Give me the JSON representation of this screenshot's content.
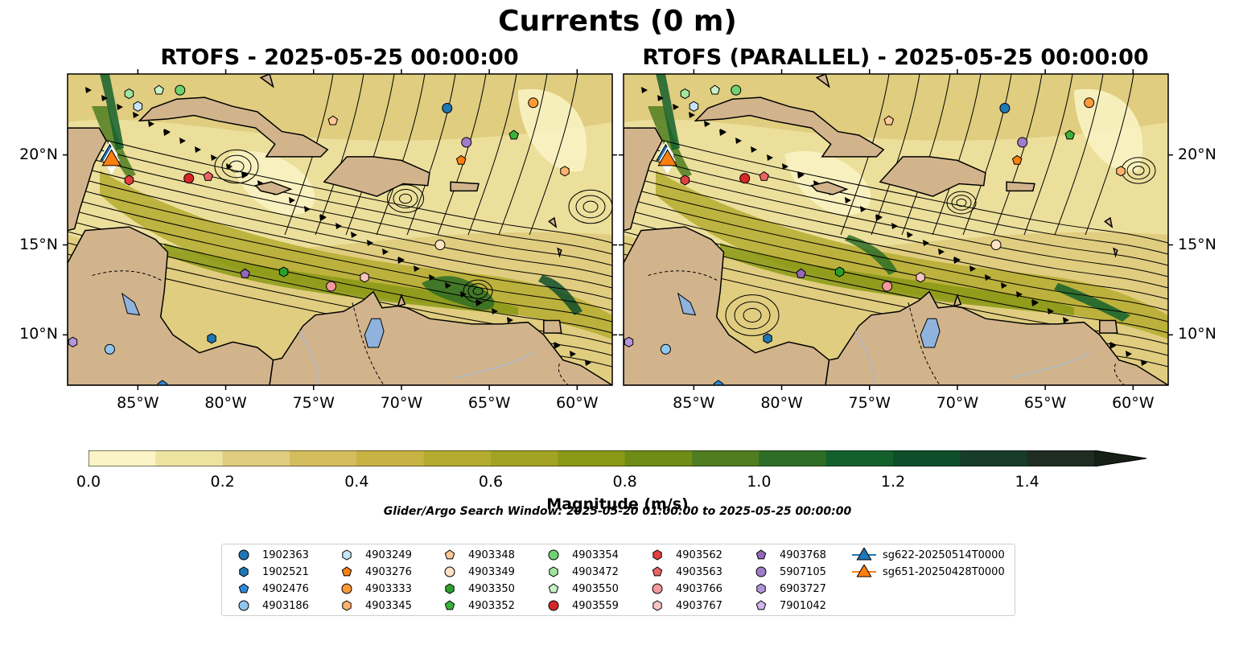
{
  "figure": {
    "suptitle": "Currents (0 m)",
    "panel_left_title": "RTOFS - 2025-05-25 00:00:00",
    "panel_right_title": "RTOFS (PARALLEL) - 2025-05-25 00:00:00",
    "colorbar_label": "Magnitude (m/s)",
    "search_window": "Glider/Argo Search Window: 2025-05-20 01:00:00 to 2025-05-25 00:00:00"
  },
  "map_extent": {
    "lon_min": -89,
    "lon_max": -58,
    "lat_min": 7.2,
    "lat_max": 24.5
  },
  "axes": {
    "lon_ticks": [
      -85,
      -80,
      -75,
      -70,
      -65,
      -60
    ],
    "lon_labels": [
      "85°W",
      "80°W",
      "75°W",
      "70°W",
      "65°W",
      "60°W"
    ],
    "lat_ticks": [
      20,
      15,
      10
    ],
    "lat_labels": [
      "20°N",
      "15°N",
      "10°N"
    ]
  },
  "colorbar": {
    "min": 0.0,
    "max": 1.5,
    "extend": "max",
    "tick_values": [
      0.0,
      0.2,
      0.4,
      0.6,
      0.8,
      1.0,
      1.2,
      1.4
    ],
    "tick_labels": [
      "0.0",
      "0.2",
      "0.4",
      "0.6",
      "0.8",
      "1.0",
      "1.2",
      "1.4"
    ],
    "colors": [
      "#faf4c6",
      "#ede2a0",
      "#e0cd7f",
      "#d4bd5d",
      "#c7b244",
      "#b5ab30",
      "#a2a224",
      "#8a9916",
      "#6f8c16",
      "#4f7d20",
      "#2e6d25",
      "#14602d",
      "#0e4e2a",
      "#173d2a",
      "#1f2c22",
      "#151f16"
    ]
  },
  "colors": {
    "land": "#d2b48c",
    "lakes": "#8fb3dd",
    "rivers": "#a7b8c8",
    "coast": "#000000"
  },
  "legend": {
    "entries": [
      {
        "label": "1902363",
        "marker": "circle",
        "color": "#1f77b4"
      },
      {
        "label": "1902521",
        "marker": "hexagon",
        "color": "#1f77b4"
      },
      {
        "label": "4902476",
        "marker": "pentagon",
        "color": "#2b8ad8"
      },
      {
        "label": "4903186",
        "marker": "circle",
        "color": "#8fc6ec"
      },
      {
        "label": "4903249",
        "marker": "hexagon",
        "color": "#c5e6f8"
      },
      {
        "label": "4903276",
        "marker": "pentagon",
        "color": "#ff7f0e"
      },
      {
        "label": "4903333",
        "marker": "circle",
        "color": "#ff9a3a"
      },
      {
        "label": "4903345",
        "marker": "hexagon",
        "color": "#ffb26b"
      },
      {
        "label": "4903348",
        "marker": "pentagon",
        "color": "#ffc896"
      },
      {
        "label": "4903349",
        "marker": "circle",
        "color": "#ffe3c4"
      },
      {
        "label": "4903350",
        "marker": "hexagon",
        "color": "#2ca02c"
      },
      {
        "label": "4903352",
        "marker": "pentagon",
        "color": "#3bb33b"
      },
      {
        "label": "4903354",
        "marker": "circle",
        "color": "#6fd16f"
      },
      {
        "label": "4903472",
        "marker": "hexagon",
        "color": "#9fe59f"
      },
      {
        "label": "4903550",
        "marker": "pentagon",
        "color": "#c8f3c8"
      },
      {
        "label": "4903559",
        "marker": "circle",
        "color": "#d62728"
      },
      {
        "label": "4903562",
        "marker": "hexagon",
        "color": "#e04040"
      },
      {
        "label": "4903563",
        "marker": "pentagon",
        "color": "#ea6464"
      },
      {
        "label": "4903766",
        "marker": "circle",
        "color": "#f2999a"
      },
      {
        "label": "4903767",
        "marker": "hexagon",
        "color": "#f8c4c4"
      },
      {
        "label": "4903768",
        "marker": "pentagon",
        "color": "#9467bd"
      },
      {
        "label": "5907105",
        "marker": "circle",
        "color": "#a17ccb"
      },
      {
        "label": "6903727",
        "marker": "hexagon",
        "color": "#b595d9"
      },
      {
        "label": "7901042",
        "marker": "pentagon",
        "color": "#d3b5ec"
      },
      {
        "label": "sg622-20250514T0000",
        "marker": "triangle",
        "color": "#1f77b4"
      },
      {
        "label": "sg651-20250428T0000",
        "marker": "triangle",
        "color": "#ff7f0e"
      }
    ]
  },
  "floats_left": [
    {
      "id": "1902363",
      "lon": -67.4,
      "lat": 22.6
    },
    {
      "id": "1902521",
      "lon": -80.8,
      "lat": 9.8
    },
    {
      "id": "4902476",
      "lon": -83.6,
      "lat": 7.2
    },
    {
      "id": "4903186",
      "lon": -86.6,
      "lat": 9.2
    },
    {
      "id": "4903249",
      "lon": -85.0,
      "lat": 22.7
    },
    {
      "id": "4903276",
      "lon": -66.6,
      "lat": 19.7
    },
    {
      "id": "4903333",
      "lon": -62.5,
      "lat": 22.9
    },
    {
      "id": "4903345",
      "lon": -60.7,
      "lat": 19.1
    },
    {
      "id": "4903348",
      "lon": -73.9,
      "lat": 21.9
    },
    {
      "id": "4903349",
      "lon": -67.8,
      "lat": 15.0
    },
    {
      "id": "4903350",
      "lon": -76.7,
      "lat": 13.5
    },
    {
      "id": "4903352",
      "lon": -63.6,
      "lat": 21.1
    },
    {
      "id": "4903354",
      "lon": -82.6,
      "lat": 23.6
    },
    {
      "id": "4903472",
      "lon": -85.5,
      "lat": 23.4
    },
    {
      "id": "4903550",
      "lon": -83.8,
      "lat": 23.6
    },
    {
      "id": "4903559",
      "lon": -82.1,
      "lat": 18.7
    },
    {
      "id": "4903562",
      "lon": -85.5,
      "lat": 18.6
    },
    {
      "id": "4903563",
      "lon": -81.0,
      "lat": 18.8
    },
    {
      "id": "4903766",
      "lon": -74.0,
      "lat": 12.7
    },
    {
      "id": "4903767",
      "lon": -72.1,
      "lat": 13.2
    },
    {
      "id": "4903768",
      "lon": -78.9,
      "lat": 13.4
    },
    {
      "id": "5907105",
      "lon": -66.3,
      "lat": 20.7
    },
    {
      "id": "6903727",
      "lon": -88.7,
      "lat": 9.6
    }
  ],
  "floats_right": [
    {
      "id": "1902363",
      "lon": -67.3,
      "lat": 22.6
    },
    {
      "id": "1902521",
      "lon": -80.8,
      "lat": 9.8
    },
    {
      "id": "4902476",
      "lon": -83.6,
      "lat": 7.2
    },
    {
      "id": "4903186",
      "lon": -86.6,
      "lat": 9.2
    },
    {
      "id": "4903249",
      "lon": -85.0,
      "lat": 22.7
    },
    {
      "id": "4903276",
      "lon": -66.6,
      "lat": 19.7
    },
    {
      "id": "4903333",
      "lon": -62.5,
      "lat": 22.9
    },
    {
      "id": "4903345",
      "lon": -60.7,
      "lat": 19.1
    },
    {
      "id": "4903348",
      "lon": -73.9,
      "lat": 21.9
    },
    {
      "id": "4903349",
      "lon": -67.8,
      "lat": 15.0
    },
    {
      "id": "4903350",
      "lon": -76.7,
      "lat": 13.5
    },
    {
      "id": "4903352",
      "lon": -63.6,
      "lat": 21.1
    },
    {
      "id": "4903354",
      "lon": -82.6,
      "lat": 23.6
    },
    {
      "id": "4903472",
      "lon": -85.5,
      "lat": 23.4
    },
    {
      "id": "4903550",
      "lon": -83.8,
      "lat": 23.6
    },
    {
      "id": "4903559",
      "lon": -82.1,
      "lat": 18.7
    },
    {
      "id": "4903562",
      "lon": -85.5,
      "lat": 18.6
    },
    {
      "id": "4903563",
      "lon": -81.0,
      "lat": 18.8
    },
    {
      "id": "4903766",
      "lon": -74.0,
      "lat": 12.7
    },
    {
      "id": "4903767",
      "lon": -72.1,
      "lat": 13.2
    },
    {
      "id": "4903768",
      "lon": -78.9,
      "lat": 13.4
    },
    {
      "id": "5907105",
      "lon": -66.3,
      "lat": 20.7
    },
    {
      "id": "6903727",
      "lon": -88.7,
      "lat": 9.6
    }
  ],
  "gliders": [
    {
      "id": "sg622-20250514T0000",
      "lon": -86.6,
      "lat": 20.0
    },
    {
      "id": "sg651-20250428T0000",
      "lon": -86.5,
      "lat": 19.7
    }
  ]
}
